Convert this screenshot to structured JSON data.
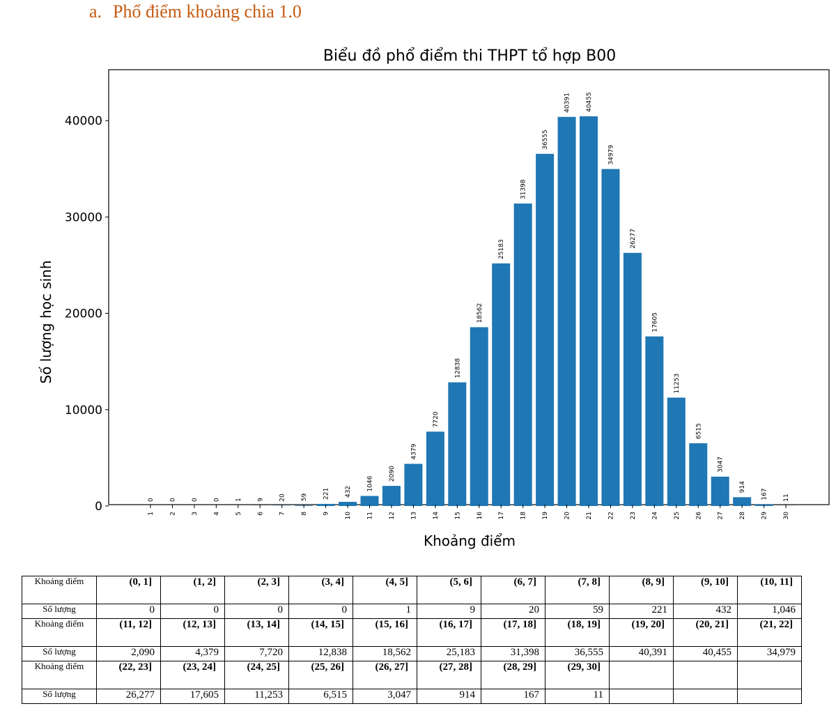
{
  "heading": {
    "number": "a.",
    "text": "Phổ điểm khoảng chia 1.0"
  },
  "chart_data": {
    "type": "bar",
    "title": "Biểu đồ phổ điểm thi THPT tổ hợp B00",
    "xlabel": "Khoảng điểm",
    "ylabel": "Số lượng học sinh",
    "categories": [
      "1",
      "2",
      "3",
      "4",
      "5",
      "6",
      "7",
      "8",
      "9",
      "10",
      "11",
      "12",
      "13",
      "14",
      "15",
      "16",
      "17",
      "18",
      "19",
      "20",
      "21",
      "22",
      "23",
      "24",
      "25",
      "26",
      "27",
      "28",
      "29",
      "30"
    ],
    "values": [
      0,
      0,
      0,
      0,
      1,
      9,
      20,
      59,
      221,
      432,
      1046,
      2090,
      4379,
      7720,
      12838,
      18562,
      25183,
      31398,
      36555,
      40391,
      40455,
      34979,
      26277,
      17605,
      11253,
      6515,
      3047,
      914,
      167,
      11
    ],
    "yticks": [
      0,
      10000,
      20000,
      30000,
      40000
    ],
    "ylim": [
      0,
      45000
    ],
    "grid": false,
    "bar_color": "#1f77b4"
  },
  "table": {
    "row_label_range": "Khoảng điểm",
    "row_label_count": "Số lượng",
    "rows": [
      {
        "ranges": [
          "(0, 1]",
          "(1, 2]",
          "(2, 3]",
          "(3, 4]",
          "(4, 5]",
          "(5, 6]",
          "(6, 7]",
          "(7, 8]",
          "(8, 9]",
          "(9, 10]",
          "(10, 11]"
        ],
        "counts": [
          "0",
          "0",
          "0",
          "0",
          "1",
          "9",
          "20",
          "59",
          "221",
          "432",
          "1,046"
        ]
      },
      {
        "ranges": [
          "(11, 12]",
          "(12, 13]",
          "(13, 14]",
          "(14, 15]",
          "(15, 16]",
          "(16, 17]",
          "(17, 18]",
          "(18, 19]",
          "(19, 20]",
          "(20, 21]",
          "(21, 22]"
        ],
        "counts": [
          "2,090",
          "4,379",
          "7,720",
          "12,838",
          "18,562",
          "25,183",
          "31,398",
          "36,555",
          "40,391",
          "40,455",
          "34,979"
        ]
      },
      {
        "ranges": [
          "(22, 23]",
          "(23, 24]",
          "(24, 25]",
          "(25, 26]",
          "(26, 27]",
          "(27, 28]",
          "(28, 29]",
          "(29, 30]",
          "",
          "",
          ""
        ],
        "counts": [
          "26,277",
          "17,605",
          "11,253",
          "6,515",
          "3,047",
          "914",
          "167",
          "11",
          "",
          "",
          ""
        ]
      }
    ]
  }
}
